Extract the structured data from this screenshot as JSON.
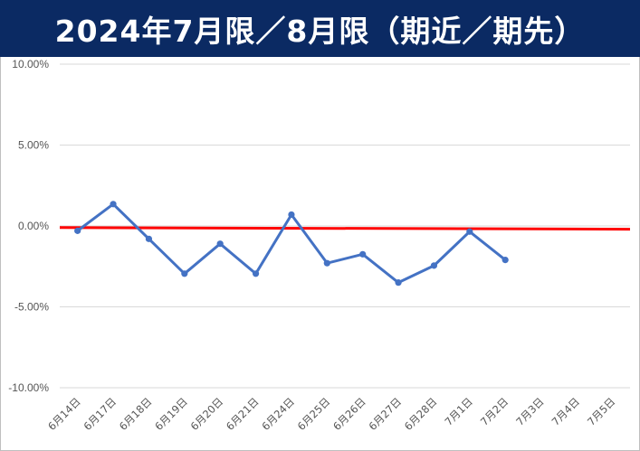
{
  "chart_data": {
    "type": "line",
    "title": "2024年7月限／8月限（期近／期先）",
    "xlabel": "",
    "ylabel": "",
    "categories": [
      "6月14日",
      "6月17日",
      "6月18日",
      "6月19日",
      "6月20日",
      "6月21日",
      "6月24日",
      "6月25日",
      "6月26日",
      "6月27日",
      "6月28日",
      "7月1日",
      "7月2日",
      "7月3日",
      "7月4日",
      "7月5日"
    ],
    "series": [
      {
        "color": "#4472c4",
        "values": [
          -0.3,
          1.35,
          -0.8,
          -2.95,
          -1.1,
          -2.95,
          0.7,
          -2.3,
          -1.75,
          -3.5,
          -2.45,
          -0.35,
          -2.1,
          null,
          null,
          null
        ]
      }
    ],
    "reference_line": {
      "color": "#ff0000",
      "start_value": -0.1,
      "end_value": -0.2
    },
    "ylim": [
      -10,
      10
    ],
    "y_ticks": [
      "10.00%",
      "5.00%",
      "0.00%",
      "-5.00%",
      "-10.00%"
    ],
    "y_tick_values": [
      10,
      5,
      0,
      -5,
      -10
    ],
    "grid": true,
    "legend": "none"
  },
  "colors": {
    "title_background": "#0b2a63",
    "title_text": "#ffffff",
    "grid": "#d9d9d9"
  }
}
